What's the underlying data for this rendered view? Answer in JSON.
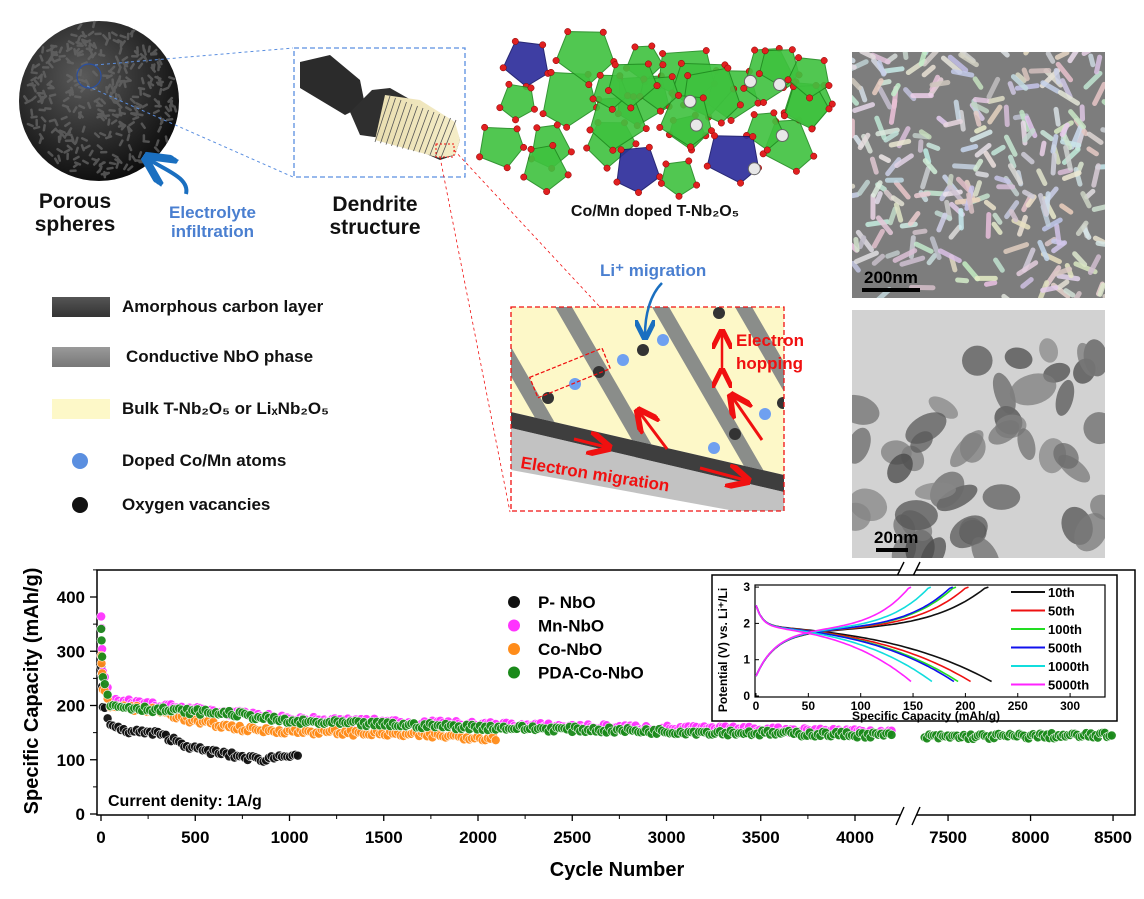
{
  "top": {
    "porous_label": [
      "Porous",
      "spheres"
    ],
    "electrolyte_label": [
      "Electrolyte",
      "infiltration"
    ],
    "dendrite_label": [
      "Dendrite",
      "structure"
    ],
    "crystal_label": "Co/Mn doped T-Nb₂O₅",
    "sem_scale": "200nm",
    "tem_scale": "20nm"
  },
  "legend": [
    {
      "label": "Amorphous carbon layer",
      "color": "#444444"
    },
    {
      "label": "Conductive NbO phase",
      "color": "#8a8a8a"
    },
    {
      "label": "Bulk T-Nb₂O₅ or LiₓNb₂O₅",
      "color": "#fdf8c8"
    },
    {
      "label": "Doped Co/Mn atoms",
      "color": "#5b8fe0"
    },
    {
      "label": "Oxygen vacancies",
      "color": "#111111"
    }
  ],
  "schematic": {
    "li_migration": "Li⁺ migration",
    "electron_hopping": [
      "Electron",
      "hopping"
    ],
    "electron_migration": "Electron migration"
  },
  "chart_data": [
    {
      "type": "scatter",
      "title": "",
      "xlabel": "Cycle Number",
      "ylabel": "Specific Capacity (mAh/g)",
      "ylim": [
        0,
        450
      ],
      "yticks": [
        "0",
        "100",
        "200",
        "300",
        "400"
      ],
      "xticks": [
        "0",
        "500",
        "1000",
        "1500",
        "2000",
        "2500",
        "3000",
        "3500",
        "4000",
        "7500",
        "8000",
        "8500"
      ],
      "x_break": [
        4250,
        7350
      ],
      "annotation": "Current denity: 1A/g",
      "legend_position": "top-center",
      "series": [
        {
          "name": "P- NbO",
          "color": "#111111",
          "points": [
            [
              1,
              270
            ],
            [
              10,
              200
            ],
            [
              50,
              165
            ],
            [
              100,
              155
            ],
            [
              300,
              148
            ],
            [
              400,
              135
            ],
            [
              500,
              120
            ],
            [
              700,
              108
            ],
            [
              850,
              100
            ],
            [
              1000,
              110
            ],
            [
              1050,
              110
            ]
          ]
        },
        {
          "name": "Mn-NbO",
          "color": "#ff33ff",
          "points": [
            [
              1,
              360
            ],
            [
              10,
              260
            ],
            [
              50,
              210
            ],
            [
              300,
              200
            ],
            [
              600,
              190
            ],
            [
              1000,
              175
            ],
            [
              2000,
              165
            ],
            [
              3000,
              158
            ],
            [
              4200,
              152
            ]
          ]
        },
        {
          "name": "Co-NbO",
          "color": "#ff8c1a",
          "points": [
            [
              1,
              290
            ],
            [
              10,
              230
            ],
            [
              50,
              200
            ],
            [
              300,
              190
            ],
            [
              500,
              170
            ],
            [
              800,
              155
            ],
            [
              1500,
              148
            ],
            [
              2100,
              140
            ]
          ]
        },
        {
          "name": "PDA-Co-NbO",
          "color": "#1a8a1a",
          "points": [
            [
              1,
              345
            ],
            [
              10,
              250
            ],
            [
              50,
              200
            ],
            [
              300,
              192
            ],
            [
              700,
              185
            ],
            [
              1000,
              170
            ],
            [
              2000,
              160
            ],
            [
              3000,
              152
            ],
            [
              4200,
              145
            ],
            [
              7350,
              142
            ],
            [
              8500,
              145
            ]
          ]
        }
      ]
    },
    {
      "type": "line",
      "title": "",
      "xlabel": "Specific Capacity (mAh/g)",
      "ylabel": "Potential (V) vs. Li⁺/Li",
      "xlim": [
        0,
        330
      ],
      "ylim": [
        0,
        3.1
      ],
      "xticks": [
        "0",
        "50",
        "100",
        "150",
        "200",
        "250",
        "300"
      ],
      "yticks": [
        "0",
        "1",
        "2",
        "3"
      ],
      "legend_position": "right",
      "series": [
        {
          "name": "10th",
          "color": "#111111",
          "discharge_capacity": 225,
          "charge_capacity": 222
        },
        {
          "name": "50th",
          "color": "#ee1111",
          "discharge_capacity": 205,
          "charge_capacity": 203
        },
        {
          "name": "100th",
          "color": "#22dd22",
          "discharge_capacity": 193,
          "charge_capacity": 191
        },
        {
          "name": "500th",
          "color": "#1111ee",
          "discharge_capacity": 189,
          "charge_capacity": 188
        },
        {
          "name": "1000th",
          "color": "#11dddd",
          "discharge_capacity": 168,
          "charge_capacity": 167
        },
        {
          "name": "5000th",
          "color": "#ff22ff",
          "discharge_capacity": 148,
          "charge_capacity": 148
        }
      ]
    }
  ]
}
